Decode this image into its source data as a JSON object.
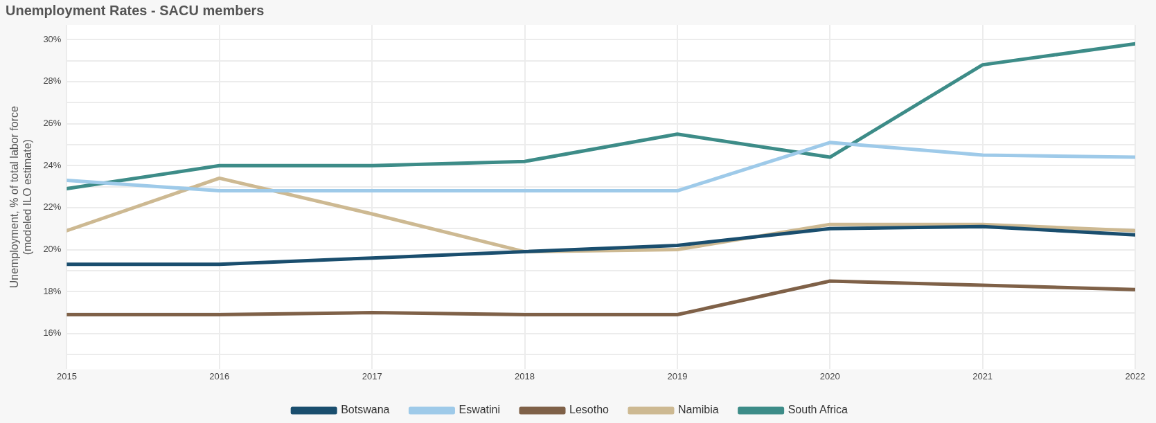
{
  "chart_data": {
    "type": "line",
    "title": "Unemployment Rates - SACU members",
    "ylabel": "Unemployment, % of total labor force\n(modeled ILO estimate)",
    "x": [
      2015,
      2016,
      2017,
      2018,
      2019,
      2020,
      2021,
      2022
    ],
    "xlim": [
      2015,
      2022
    ],
    "xticks": [
      2015,
      2016,
      2017,
      2018,
      2019,
      2020,
      2021,
      2022
    ],
    "ylim": [
      14.3,
      30.7
    ],
    "yticks": [
      {
        "value": 15,
        "label": null
      },
      {
        "value": 16,
        "label": "16%"
      },
      {
        "value": 17,
        "label": null
      },
      {
        "value": 18,
        "label": "18%"
      },
      {
        "value": 19,
        "label": null
      },
      {
        "value": 20,
        "label": "20%"
      },
      {
        "value": 21,
        "label": null
      },
      {
        "value": 22,
        "label": "22%"
      },
      {
        "value": 23,
        "label": null
      },
      {
        "value": 24,
        "label": "24%"
      },
      {
        "value": 25,
        "label": null
      },
      {
        "value": 26,
        "label": "26%"
      },
      {
        "value": 27,
        "label": null
      },
      {
        "value": 28,
        "label": "28%"
      },
      {
        "value": 29,
        "label": null
      },
      {
        "value": 30,
        "label": "30%"
      }
    ],
    "grid": true,
    "legend": "bottom",
    "marker": "none",
    "line_style": "solid",
    "series": [
      {
        "name": "Botswana",
        "color": "#1a4e6e",
        "values": [
          19.3,
          19.3,
          19.6,
          19.9,
          20.2,
          21.0,
          21.1,
          20.7
        ]
      },
      {
        "name": "Eswatini",
        "color": "#9ecae9",
        "values": [
          23.3,
          22.8,
          22.8,
          22.8,
          22.8,
          25.1,
          24.5,
          24.4
        ]
      },
      {
        "name": "Lesotho",
        "color": "#7f6148",
        "values": [
          16.9,
          16.9,
          17.0,
          16.9,
          16.9,
          18.5,
          18.3,
          18.1
        ]
      },
      {
        "name": "Namibia",
        "color": "#cdb992",
        "values": [
          20.9,
          23.4,
          21.7,
          19.9,
          20.0,
          21.2,
          21.2,
          20.9
        ]
      },
      {
        "name": "South Africa",
        "color": "#3d8c88",
        "values": [
          22.9,
          24.0,
          24.0,
          24.2,
          25.5,
          24.4,
          28.8,
          29.8
        ]
      }
    ]
  }
}
